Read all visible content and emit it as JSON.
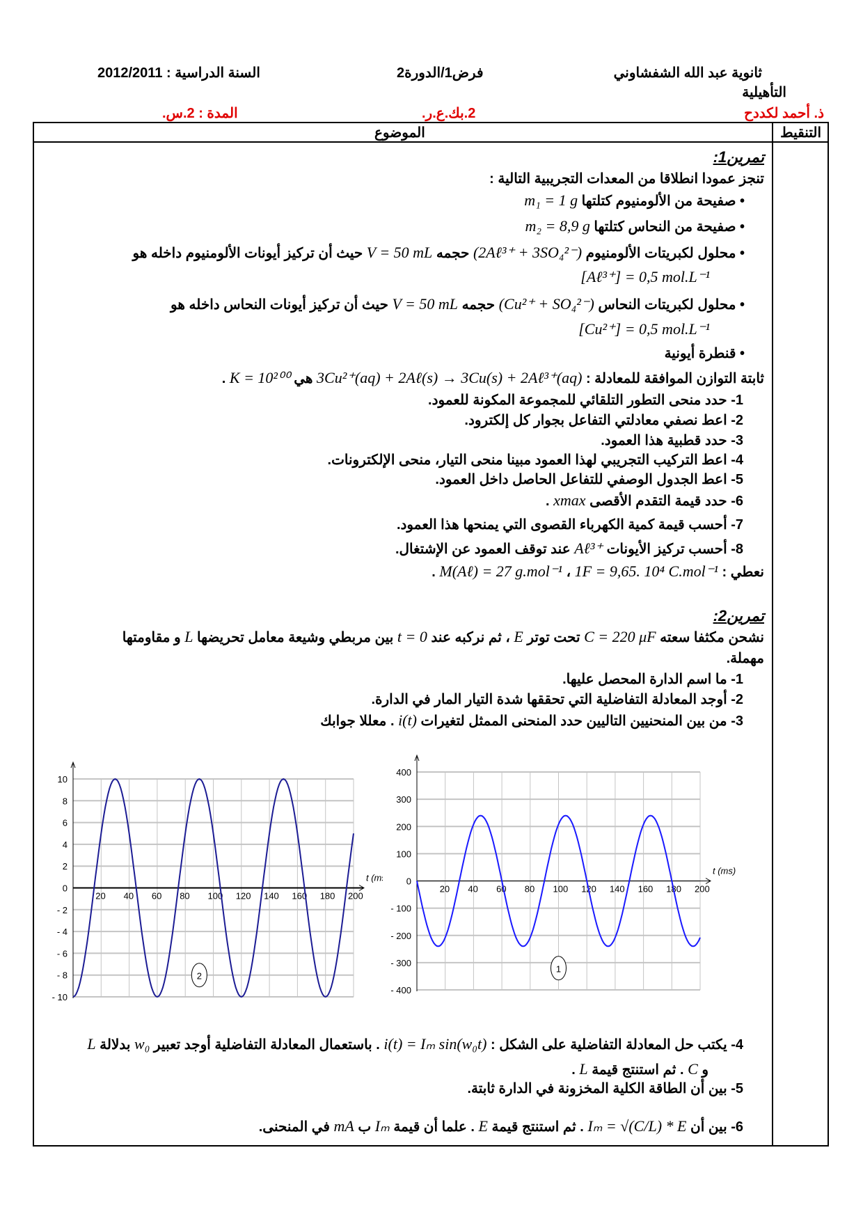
{
  "header": {
    "school": "ثانوية عبد الله الشفشاوني",
    "school2": "التأهيلية",
    "teacher": "ذ. أحمد لكددح",
    "exam": "فرض1/الدورة2",
    "level": "2.بك.ع.ر.",
    "year": "السنة الدراسية : 2012/2011",
    "duration": "المدة : 2.س.",
    "col_grade": "التنقيط",
    "col_subject": "الموضوع"
  },
  "lines": [
    [
      {
        "t": "تمرين1:",
        "c": "ttl"
      }
    ],
    [
      {
        "t": "تنجز عمودا انطلاقا من المعدات التجريبية التالية :"
      }
    ],
    [
      {
        "t": "•   صفيحة من الألومنيوم كتلتها "
      },
      {
        "t": "m₁ = 1 g",
        "c": "m"
      }
    ],
    [
      {
        "t": "•   صفيحة من النحاس كتلتها "
      },
      {
        "t": "m₂ = 8,9 g",
        "c": "m"
      }
    ],
    [
      {
        "t": "•   محلول لكبريتات الألومنيوم "
      },
      {
        "t": "(2Aℓ³⁺ + 3SO₄²⁻)",
        "c": "m"
      },
      {
        "t": " حجمه "
      },
      {
        "t": "V = 50 mL",
        "c": "m"
      },
      {
        "t": " حيث أن تركيز أيونات الألومنيوم داخله هو"
      }
    ],
    [
      {
        "t": "[Aℓ³⁺] = 0,5 mol.L⁻¹",
        "c": "m"
      }
    ],
    [
      {
        "t": "•   محلول لكبريتات النحاس "
      },
      {
        "t": "(Cu²⁺ + SO₄²⁻)",
        "c": "m"
      },
      {
        "t": " حجمه "
      },
      {
        "t": "V = 50 mL",
        "c": "m"
      },
      {
        "t": " حيث أن تركيز أيونات النحاس داخله هو"
      }
    ],
    [
      {
        "t": "[Cu²⁺] = 0,5 mol.L⁻¹",
        "c": "m"
      }
    ],
    [
      {
        "t": "•   قنطرة أيونية"
      }
    ],
    [
      {
        "t": "ثابتة التوازن الموافقة للمعادلة : "
      },
      {
        "t": "3Cu²⁺(aq) + 2Aℓ(s) → 3Cu(s) + 2Aℓ³⁺(aq)",
        "c": "m"
      },
      {
        "t": " هي "
      },
      {
        "t": "K = 10²⁰⁰",
        "c": "m"
      },
      {
        "t": " ."
      }
    ],
    [
      {
        "t": "1-   حدد منحى التطور التلقائي للمجموعة المكونة للعمود."
      }
    ],
    [
      {
        "t": "2-   اعط نصفي معادلتي التفاعل بجوار كل إلكترود."
      }
    ],
    [
      {
        "t": "3-   حدد قطبية هذا العمود."
      }
    ],
    [
      {
        "t": "4-   اعط التركيب التجريبي لهذا العمود مبينا منحى التيار، منحى الإلكترونات."
      }
    ],
    [
      {
        "t": "5-   اعط الجدول الوصفي للتفاعل الحاصل داخل العمود."
      }
    ],
    [
      {
        "t": "6-   حدد قيمة التقدم الأقصى "
      },
      {
        "t": "xmax",
        "c": "m"
      },
      {
        "t": " ."
      }
    ],
    [
      {
        "t": "7-   أحسب قيمة كمية الكهرباء القصوى التي يمنحها هذا العمود."
      }
    ],
    [
      {
        "t": "8-   أحسب تركيز الأيونات "
      },
      {
        "t": "Aℓ³⁺",
        "c": "m"
      },
      {
        "t": " عند توقف العمود عن الإشتغال."
      }
    ],
    [
      {
        "t": "نعطي : "
      },
      {
        "t": "1F = 9,65. 10⁴ C.mol⁻¹",
        "c": "m"
      },
      {
        "t": " ،   "
      },
      {
        "t": "M(Aℓ) = 27 g.mol⁻¹",
        "c": "m"
      },
      {
        "t": " ."
      }
    ],
    [
      {
        "t": "تمرين2:",
        "c": "ttl"
      }
    ],
    [
      {
        "t": "نشحن مكثفا سعته "
      },
      {
        "t": "C = 220 μF",
        "c": "m"
      },
      {
        "t": " تحت توتر "
      },
      {
        "t": "E",
        "c": "m"
      },
      {
        "t": " ، ثم نركبه عند "
      },
      {
        "t": "t = 0",
        "c": "m"
      },
      {
        "t": " بين مربطي وشيعة معامل تحريضها "
      },
      {
        "t": "L",
        "c": "m"
      },
      {
        "t": " و مقاومتها"
      }
    ],
    [
      {
        "t": "مهملة."
      }
    ],
    [
      {
        "t": "1-   ما اسم الدارة المحصل عليها."
      }
    ],
    [
      {
        "t": "2-   أوجد المعادلة التفاضلية التي تحققها شدة التيار المار في الدارة."
      }
    ],
    [
      {
        "t": "3-   من بين المنحنيين التاليين حدد المنحنى الممثل لتغيرات "
      },
      {
        "t": "i(t)",
        "c": "m"
      },
      {
        "t": " . معللا جوابك"
      }
    ],
    [
      {
        "t": "4-   يكتب حل المعادلة التفاضلية على الشكل : "
      },
      {
        "t": "i(t) = Iₘ sin(w₀t)",
        "c": "m"
      },
      {
        "t": " . باستعمال المعادلة التفاضلية أوجد تعبير "
      },
      {
        "t": "w₀",
        "c": "m"
      },
      {
        "t": " بدلالة "
      },
      {
        "t": "L",
        "c": "m"
      }
    ],
    [
      {
        "t": "و "
      },
      {
        "t": "C",
        "c": "m"
      },
      {
        "t": " . ثم استنتج قيمة "
      },
      {
        "t": "L",
        "c": "m"
      },
      {
        "t": " ."
      }
    ],
    [
      {
        "t": "5-   بين أن الطاقة الكلية المخزونة في الدارة ثابتة."
      }
    ],
    [
      {
        "t": "6-   بين أن "
      },
      {
        "t": "Iₘ = √(C/L) * E",
        "c": "m"
      },
      {
        "t": " . ثم استنتج قيمة "
      },
      {
        "t": "E",
        "c": "m"
      },
      {
        "t": " . علما أن قيمة "
      },
      {
        "t": "Iₘ",
        "c": "m"
      },
      {
        "t": " ب "
      },
      {
        "t": "mA",
        "c": "m"
      },
      {
        "t": " في المنحنى."
      }
    ]
  ],
  "chart_data": [
    {
      "type": "line",
      "label": "2",
      "xlabel": "t (ms)",
      "xlim": [
        0,
        200
      ],
      "ylim": [
        -10,
        10
      ],
      "xticks": [
        20,
        40,
        60,
        80,
        100,
        120,
        140,
        160,
        180,
        200
      ],
      "yticks": [
        10,
        8,
        6,
        4,
        2,
        0,
        -2,
        -4,
        -6,
        -8,
        -10
      ],
      "grid": true,
      "color": "#1c1c94",
      "series": [
        {
          "function": "-10*cos(2*pi*t/60)",
          "x": [
            0,
            15,
            30,
            45,
            60,
            75,
            90,
            105,
            120,
            135,
            150,
            165,
            180,
            195,
            200
          ],
          "y": [
            -10,
            0,
            10,
            0,
            -10,
            0,
            10,
            0,
            -10,
            0,
            10,
            0,
            -10,
            0,
            5
          ]
        }
      ]
    },
    {
      "type": "line",
      "label": "1",
      "xlabel": "t (ms)",
      "xlim": [
        0,
        200
      ],
      "ylim": [
        -400,
        400
      ],
      "xticks": [
        20,
        40,
        60,
        80,
        100,
        120,
        140,
        160,
        180,
        200
      ],
      "yticks": [
        400,
        300,
        200,
        100,
        0,
        -100,
        -200,
        -300,
        -400
      ],
      "grid": true,
      "color": "#1a1aff",
      "series": [
        {
          "function": "-240*sin(2*pi*t/60)",
          "x": [
            0,
            15,
            30,
            45,
            60,
            75,
            90,
            105,
            120,
            135,
            150,
            165,
            180,
            195,
            200
          ],
          "y": [
            0,
            -240,
            0,
            240,
            0,
            -240,
            0,
            240,
            0,
            -240,
            0,
            240,
            0,
            -240,
            -208
          ]
        }
      ]
    }
  ]
}
